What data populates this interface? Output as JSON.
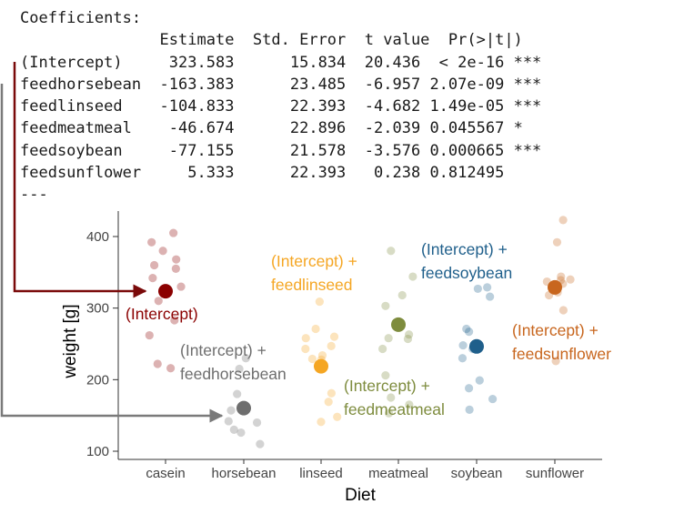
{
  "coefficients": {
    "heading": "Coefficients:",
    "columns": [
      "Estimate",
      "Std. Error",
      "t value",
      "Pr(>|t|)"
    ],
    "rows": [
      {
        "term": "(Intercept)",
        "estimate": "323.583",
        "std_error": "15.834",
        "t_value": "20.436",
        "p_value": "< 2e-16",
        "signif": "***"
      },
      {
        "term": "feedhorsebean",
        "estimate": "-163.383",
        "std_error": "23.485",
        "t_value": "-6.957",
        "p_value": "2.07e-09",
        "signif": "***"
      },
      {
        "term": "feedlinseed",
        "estimate": "-104.833",
        "std_error": "22.393",
        "t_value": "-4.682",
        "p_value": "1.49e-05",
        "signif": "***"
      },
      {
        "term": "feedmeatmeal",
        "estimate": "-46.674",
        "std_error": "22.896",
        "t_value": "-2.039",
        "p_value": "0.045567",
        "signif": "*"
      },
      {
        "term": "feedsoybean",
        "estimate": "-77.155",
        "std_error": "21.578",
        "t_value": "-3.576",
        "p_value": "0.000665",
        "signif": "***"
      },
      {
        "term": "feedsunflower",
        "estimate": "5.333",
        "std_error": "22.393",
        "t_value": "0.238",
        "p_value": "0.812495",
        "signif": ""
      }
    ],
    "footer": "---"
  },
  "chart_data": {
    "type": "scatter",
    "xlabel": "Diet",
    "ylabel": "weight [g]",
    "ylim": [
      95,
      430
    ],
    "yticks": [
      100,
      200,
      300,
      400
    ],
    "categories": [
      "casein",
      "horsebean",
      "linseed",
      "meatmeal",
      "soybean",
      "sunflower"
    ],
    "colors": [
      "#8B0000",
      "#6E6E6E",
      "#F5A623",
      "#7E8C3E",
      "#1F5F8B",
      "#C8661E"
    ],
    "means": [
      323.583,
      160.2,
      218.75,
      276.909,
      246.429,
      328.917
    ],
    "points": [
      [
        405,
        392,
        380,
        368,
        360,
        355,
        342,
        330,
        310,
        283,
        262,
        222,
        216
      ],
      [
        230,
        215,
        180,
        160,
        157,
        142,
        140,
        130,
        126,
        110
      ],
      [
        309,
        271,
        260,
        258,
        247,
        243,
        234,
        229,
        228,
        181,
        169,
        148,
        141
      ],
      [
        380,
        344,
        318,
        303,
        258,
        263,
        257,
        243,
        206,
        175,
        165,
        153
      ],
      [
        329,
        327,
        316,
        267,
        271,
        248,
        243,
        230,
        199,
        188,
        173,
        158
      ],
      [
        423,
        392,
        344,
        340,
        339,
        337,
        334,
        322,
        318,
        297,
        226
      ]
    ],
    "grid": false,
    "annotations": [
      {
        "lines": [
          "(Intercept)"
        ]
      },
      {
        "lines": [
          "(Intercept) +",
          "feedhorsebean"
        ]
      },
      {
        "lines": [
          "(Intercept) +",
          "feedlinseed"
        ]
      },
      {
        "lines": [
          "(Intercept) +",
          "feedmeatmeal"
        ]
      },
      {
        "lines": [
          "(Intercept) +",
          "feedsoybean"
        ]
      },
      {
        "lines": [
          "(Intercept) +",
          "feedsunflower"
        ]
      }
    ],
    "arrow_colors": [
      "#7A0A0A",
      "#7A7A7A"
    ],
    "point_alpha": 0.3
  }
}
